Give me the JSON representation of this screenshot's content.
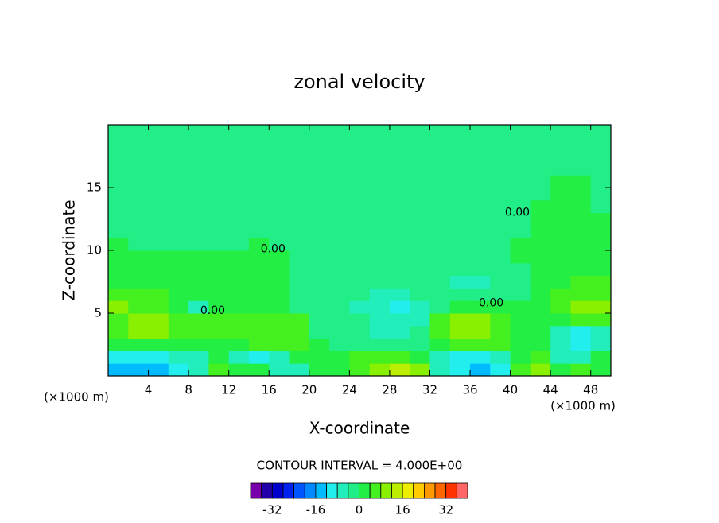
{
  "chart_data": {
    "type": "contour",
    "title": "zonal velocity",
    "x_label": "X-coordinate",
    "y_label": "Z-coordinate",
    "x_unit": "(×1000 m)",
    "y_unit": "(×1000 m)",
    "contour_interval": "CONTOUR INTERVAL = 4.000E+00",
    "xlim": [
      0,
      50
    ],
    "ylim": [
      0,
      20
    ],
    "xticks": [
      4,
      8,
      12,
      16,
      20,
      24,
      28,
      32,
      36,
      40,
      44,
      48
    ],
    "yticks": [
      5,
      10,
      15
    ],
    "x": [
      1,
      3,
      5,
      7,
      9,
      11,
      13,
      15,
      17,
      19,
      21,
      23,
      25,
      27,
      29,
      31,
      33,
      35,
      37,
      39,
      41,
      43,
      45,
      47,
      49
    ],
    "y": [
      0.5,
      1.5,
      2.5,
      3.5,
      4.5,
      5.5,
      6.5,
      7.5,
      8.5,
      9.5,
      10.5,
      11.5,
      12.5,
      13.5,
      14.5,
      15.5,
      16.5,
      17.5,
      18.5,
      19.5
    ],
    "z": [
      [
        -13,
        -13,
        -13,
        -9,
        -5,
        6,
        2,
        2,
        -5,
        -5,
        2,
        2,
        6,
        10,
        14,
        10,
        -5,
        -9,
        -13,
        -9,
        6,
        10,
        2,
        6,
        2
      ],
      [
        -9,
        -9,
        -9,
        -5,
        -5,
        2,
        -5,
        -9,
        -5,
        2,
        2,
        2,
        6,
        6,
        6,
        2,
        -5,
        -9,
        -9,
        -5,
        2,
        6,
        -5,
        -5,
        2
      ],
      [
        2,
        2,
        2,
        2,
        2,
        2,
        2,
        6,
        6,
        6,
        2,
        -1,
        -1,
        -1,
        -1,
        -1,
        2,
        6,
        6,
        6,
        2,
        2,
        -5,
        -9,
        -5
      ],
      [
        6,
        10,
        10,
        6,
        6,
        6,
        6,
        6,
        6,
        6,
        -1,
        -1,
        -1,
        -5,
        -5,
        -1,
        6,
        10,
        10,
        6,
        2,
        2,
        -5,
        -9,
        -5
      ],
      [
        6,
        10,
        10,
        6,
        6,
        6,
        6,
        6,
        6,
        6,
        -1,
        -1,
        -1,
        -5,
        -5,
        -5,
        6,
        10,
        10,
        6,
        2,
        2,
        2,
        6,
        6
      ],
      [
        10,
        6,
        6,
        2,
        -5,
        2,
        2,
        2,
        2,
        -1,
        -1,
        -1,
        -5,
        -5,
        -9,
        -5,
        -1,
        2,
        2,
        2,
        2,
        2,
        6,
        10,
        10
      ],
      [
        6,
        6,
        6,
        2,
        2,
        2,
        2,
        2,
        2,
        -1,
        -1,
        -1,
        -1,
        -5,
        -5,
        -1,
        -1,
        -1,
        -1,
        -1,
        -1,
        2,
        6,
        6,
        6
      ],
      [
        2,
        2,
        2,
        2,
        2,
        2,
        2,
        2,
        2,
        -1,
        -1,
        -1,
        -1,
        -1,
        -1,
        -1,
        -1,
        -5,
        -5,
        -1,
        -1,
        2,
        2,
        6,
        6
      ],
      [
        2,
        2,
        2,
        2,
        2,
        2,
        2,
        2,
        2,
        -1,
        -1,
        -1,
        -1,
        -1,
        -1,
        -1,
        -1,
        -1,
        -1,
        -1,
        -1,
        2,
        2,
        2,
        2
      ],
      [
        2,
        2,
        2,
        2,
        2,
        2,
        2,
        2,
        2,
        -1,
        -1,
        -1,
        -1,
        -1,
        -1,
        -1,
        -1,
        -1,
        -1,
        -1,
        2,
        2,
        2,
        2,
        2
      ],
      [
        2,
        -1,
        -1,
        -1,
        -1,
        -1,
        -1,
        2,
        -1,
        -1,
        -1,
        -1,
        -1,
        -1,
        -1,
        -1,
        -1,
        -1,
        -1,
        -1,
        2,
        2,
        2,
        2,
        2
      ],
      [
        -1,
        -1,
        -1,
        -1,
        -1,
        -1,
        -1,
        -1,
        -1,
        -1,
        -1,
        -1,
        -1,
        -1,
        -1,
        -1,
        -1,
        -1,
        -1,
        -1,
        -1,
        2,
        2,
        2,
        2
      ],
      [
        -1,
        -1,
        -1,
        -1,
        -1,
        -1,
        -1,
        -1,
        -1,
        -1,
        -1,
        -1,
        -1,
        -1,
        -1,
        -1,
        -1,
        -1,
        -1,
        -1,
        -1,
        2,
        2,
        2,
        2
      ],
      [
        -1,
        -1,
        -1,
        -1,
        -1,
        -1,
        -1,
        -1,
        -1,
        -1,
        -1,
        -1,
        -1,
        -1,
        -1,
        -1,
        -1,
        -1,
        -1,
        -1,
        -1,
        2,
        2,
        2,
        -1
      ],
      [
        -1,
        -1,
        -1,
        -1,
        -1,
        -1,
        -1,
        -1,
        -1,
        -1,
        -1,
        -1,
        -1,
        -1,
        -1,
        -1,
        -1,
        -1,
        -1,
        -1,
        -1,
        -1,
        2,
        2,
        -1
      ],
      [
        -1,
        -1,
        -1,
        -1,
        -1,
        -1,
        -1,
        -1,
        -1,
        -1,
        -1,
        -1,
        -1,
        -1,
        -1,
        -1,
        -1,
        -1,
        -1,
        -1,
        -1,
        -1,
        2,
        2,
        -1
      ],
      [
        -1,
        -1,
        -1,
        -1,
        -1,
        -1,
        -1,
        -1,
        -1,
        -1,
        -1,
        -1,
        -1,
        -1,
        -1,
        -1,
        -1,
        -1,
        -1,
        -1,
        -1,
        -1,
        -1,
        -1,
        -1
      ],
      [
        -1,
        -1,
        -1,
        -1,
        -1,
        -1,
        -1,
        -1,
        -1,
        -1,
        -1,
        -1,
        -1,
        -1,
        -1,
        -1,
        -1,
        -1,
        -1,
        -1,
        -1,
        -1,
        -1,
        -1,
        -1
      ],
      [
        -1,
        -1,
        -1,
        -1,
        -1,
        -1,
        -1,
        -1,
        -1,
        -1,
        -1,
        -1,
        -1,
        -1,
        -1,
        -1,
        -1,
        -1,
        -1,
        -1,
        -1,
        -1,
        -1,
        -1,
        -1
      ],
      [
        -1,
        -1,
        -1,
        -1,
        -1,
        -1,
        -1,
        -1,
        -1,
        -1,
        -1,
        -1,
        -1,
        -1,
        -1,
        -1,
        -1,
        -1,
        -1,
        -1,
        -1,
        -1,
        -1,
        -1,
        -1
      ]
    ],
    "levels": [
      -40,
      -36,
      -32,
      -28,
      -24,
      -20,
      -16,
      -12,
      -8,
      -4,
      0,
      4,
      8,
      12,
      16,
      20,
      24,
      28,
      32,
      36,
      40
    ],
    "colors": [
      "#7700aa",
      "#2200aa",
      "#0000cc",
      "#0022ee",
      "#0055ff",
      "#0088ff",
      "#00bbff",
      "#22eeee",
      "#22eebb",
      "#22ee88",
      "#22ee44",
      "#44f020",
      "#88f000",
      "#bbee00",
      "#eeee00",
      "#ffcc00",
      "#ff9900",
      "#ff6600",
      "#ff3300",
      "#ff6666",
      "#ff9999"
    ],
    "colorbar_ticks": [
      -32,
      -16,
      0,
      16,
      32
    ],
    "annotations": [
      {
        "text": "0.00",
        "x": 16.4,
        "y": 10.1
      },
      {
        "text": "0.00",
        "x": 10.4,
        "y": 5.2
      },
      {
        "text": "0.00",
        "x": 38.1,
        "y": 5.8
      },
      {
        "text": "0.00",
        "x": 40.7,
        "y": 13
      }
    ]
  }
}
